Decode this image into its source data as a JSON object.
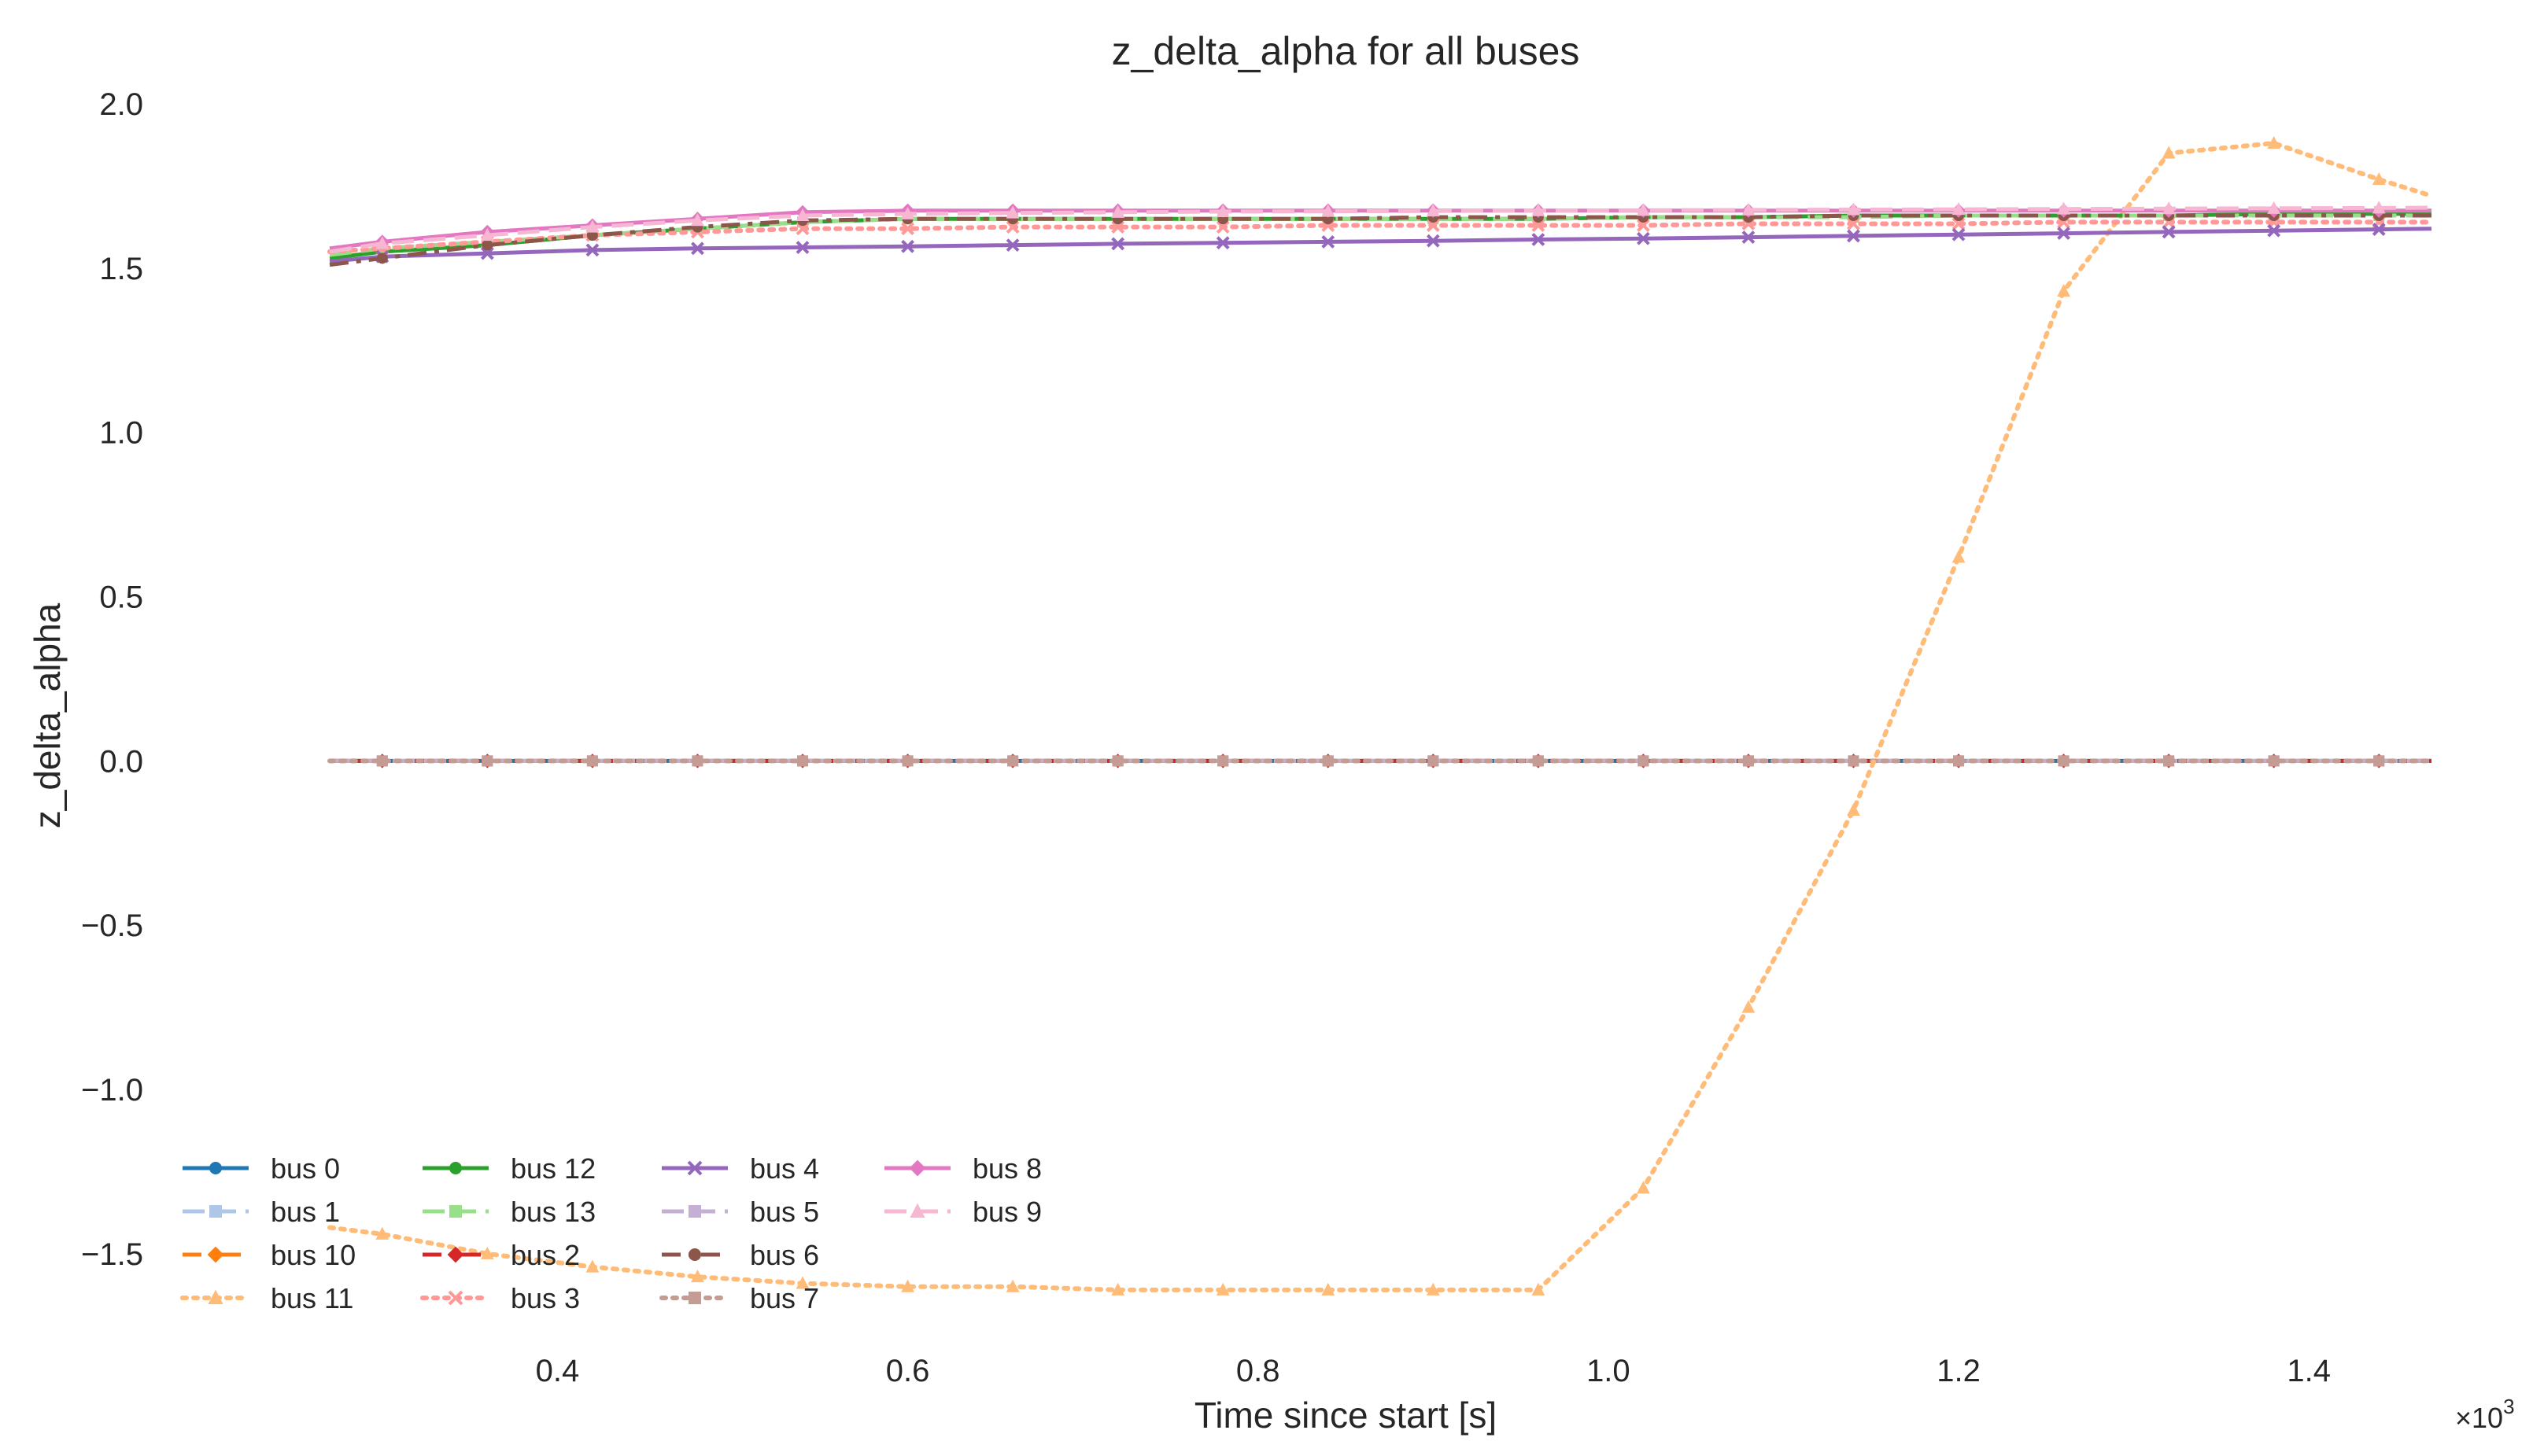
{
  "chart_data": {
    "type": "line",
    "title": "z_delta_alpha for all buses",
    "xlabel": "Time since start [s]",
    "ylabel": "z_delta_alpha",
    "x_multiplier_label": "×10",
    "x_multiplier_exp": "3",
    "xlim": [
      0.23,
      1.47
    ],
    "ylim": [
      -1.73,
      2.0
    ],
    "x_ticks": [
      0.4,
      0.6,
      0.8,
      1.0,
      1.2,
      1.4
    ],
    "x_tick_labels": [
      "0.4",
      "0.6",
      "0.8",
      "1.0",
      "1.2",
      "1.4"
    ],
    "y_ticks": [
      2.0,
      1.5,
      1.0,
      0.5,
      0.0,
      -0.5,
      -1.0,
      -1.5
    ],
    "y_tick_labels": [
      "2.0",
      "1.5",
      "1.0",
      "0.5",
      "0.0",
      "−0.5",
      "−1.0",
      "−1.5"
    ],
    "grid": false,
    "legend_placement": "lower-left",
    "legend_columns": 4,
    "x": [
      0.27,
      0.3,
      0.36,
      0.42,
      0.48,
      0.54,
      0.6,
      0.66,
      0.72,
      0.78,
      0.84,
      0.9,
      0.96,
      1.02,
      1.08,
      1.14,
      1.2,
      1.26,
      1.32,
      1.38,
      1.44,
      1.47
    ],
    "series": [
      {
        "name": "bus 0",
        "color": "#1f77b4",
        "dash": "solid",
        "marker": "dot",
        "values": [
          0,
          0,
          0,
          0,
          0,
          0,
          0,
          0,
          0,
          0,
          0,
          0,
          0,
          0,
          0,
          0,
          0,
          0,
          0,
          0,
          0,
          0
        ]
      },
      {
        "name": "bus 1",
        "color": "#aec7e8",
        "dash": "dashed",
        "marker": "square",
        "values": [
          0,
          0,
          0,
          0,
          0,
          0,
          0,
          0,
          0,
          0,
          0,
          0,
          0,
          0,
          0,
          0,
          0,
          0,
          0,
          0,
          0,
          0
        ]
      },
      {
        "name": "bus 10",
        "color": "#ff7f0e",
        "dash": "dashdot",
        "marker": "diamond",
        "values": [
          0,
          0,
          0,
          0,
          0,
          0,
          0,
          0,
          0,
          0,
          0,
          0,
          0,
          0,
          0,
          0,
          0,
          0,
          0,
          0,
          0,
          0
        ]
      },
      {
        "name": "bus 11",
        "color": "#ffbb78",
        "dash": "dotted",
        "marker": "triangle",
        "values": [
          -1.42,
          -1.44,
          -1.5,
          -1.54,
          -1.57,
          -1.59,
          -1.6,
          -1.6,
          -1.61,
          -1.61,
          -1.61,
          -1.61,
          -1.61,
          -1.3,
          -0.75,
          -0.15,
          0.62,
          1.43,
          1.85,
          1.88,
          1.77,
          1.72
        ]
      },
      {
        "name": "bus 12",
        "color": "#2ca02c",
        "dash": "solid",
        "marker": "dot",
        "values": [
          1.53,
          1.55,
          1.57,
          1.6,
          1.62,
          1.64,
          1.65,
          1.65,
          1.65,
          1.65,
          1.65,
          1.65,
          1.65,
          1.655,
          1.655,
          1.66,
          1.66,
          1.66,
          1.66,
          1.665,
          1.665,
          1.665
        ]
      },
      {
        "name": "bus 13",
        "color": "#98df8a",
        "dash": "dashed",
        "marker": "square",
        "values": [
          1.54,
          1.56,
          1.58,
          1.6,
          1.62,
          1.64,
          1.65,
          1.65,
          1.65,
          1.65,
          1.65,
          1.65,
          1.65,
          1.655,
          1.655,
          1.655,
          1.66,
          1.66,
          1.66,
          1.66,
          1.66,
          1.66
        ]
      },
      {
        "name": "bus 2",
        "color": "#d62728",
        "dash": "dashdot",
        "marker": "diamond",
        "values": [
          0,
          0,
          0,
          0,
          0,
          0,
          0,
          0,
          0,
          0,
          0,
          0,
          0,
          0,
          0,
          0,
          0,
          0,
          0,
          0,
          0,
          0
        ]
      },
      {
        "name": "bus 3",
        "color": "#ff9896",
        "dash": "dotted",
        "marker": "cross",
        "values": [
          1.55,
          1.56,
          1.58,
          1.6,
          1.61,
          1.62,
          1.62,
          1.625,
          1.625,
          1.625,
          1.63,
          1.63,
          1.63,
          1.63,
          1.635,
          1.635,
          1.635,
          1.64,
          1.64,
          1.64,
          1.64,
          1.64
        ]
      },
      {
        "name": "bus 4",
        "color": "#9467bd",
        "dash": "solid",
        "marker": "cross",
        "values": [
          1.52,
          1.535,
          1.545,
          1.555,
          1.56,
          1.563,
          1.566,
          1.57,
          1.574,
          1.577,
          1.58,
          1.583,
          1.587,
          1.59,
          1.594,
          1.598,
          1.602,
          1.606,
          1.61,
          1.614,
          1.618,
          1.62
        ]
      },
      {
        "name": "bus 5",
        "color": "#c5b0d5",
        "dash": "dashed",
        "marker": "square",
        "values": [
          0,
          0,
          0,
          0,
          0,
          0,
          0,
          0,
          0,
          0,
          0,
          0,
          0,
          0,
          0,
          0,
          0,
          0,
          0,
          0,
          0,
          0
        ]
      },
      {
        "name": "bus 6",
        "color": "#8c564b",
        "dash": "dashdot",
        "marker": "dot",
        "values": [
          1.51,
          1.53,
          1.57,
          1.6,
          1.625,
          1.645,
          1.65,
          1.65,
          1.65,
          1.65,
          1.65,
          1.655,
          1.655,
          1.655,
          1.655,
          1.66,
          1.66,
          1.66,
          1.66,
          1.66,
          1.66,
          1.66
        ]
      },
      {
        "name": "bus 7",
        "color": "#c49c94",
        "dash": "dotted",
        "marker": "square",
        "values": [
          0,
          0,
          0,
          0,
          0,
          0,
          0,
          0,
          0,
          0,
          0,
          0,
          0,
          0,
          0,
          0,
          0,
          0,
          0,
          0,
          0,
          0
        ]
      },
      {
        "name": "bus 8",
        "color": "#e377c2",
        "dash": "solid",
        "marker": "diamond",
        "values": [
          1.56,
          1.58,
          1.61,
          1.63,
          1.65,
          1.67,
          1.675,
          1.675,
          1.675,
          1.675,
          1.675,
          1.675,
          1.675,
          1.675,
          1.675,
          1.675,
          1.675,
          1.675,
          1.675,
          1.675,
          1.675,
          1.675
        ]
      },
      {
        "name": "bus 9",
        "color": "#f7b6d2",
        "dash": "dashed",
        "marker": "triangle",
        "values": [
          1.55,
          1.575,
          1.6,
          1.625,
          1.645,
          1.66,
          1.665,
          1.668,
          1.67,
          1.672,
          1.673,
          1.674,
          1.675,
          1.676,
          1.677,
          1.678,
          1.679,
          1.68,
          1.681,
          1.682,
          1.683,
          1.684
        ]
      }
    ]
  }
}
